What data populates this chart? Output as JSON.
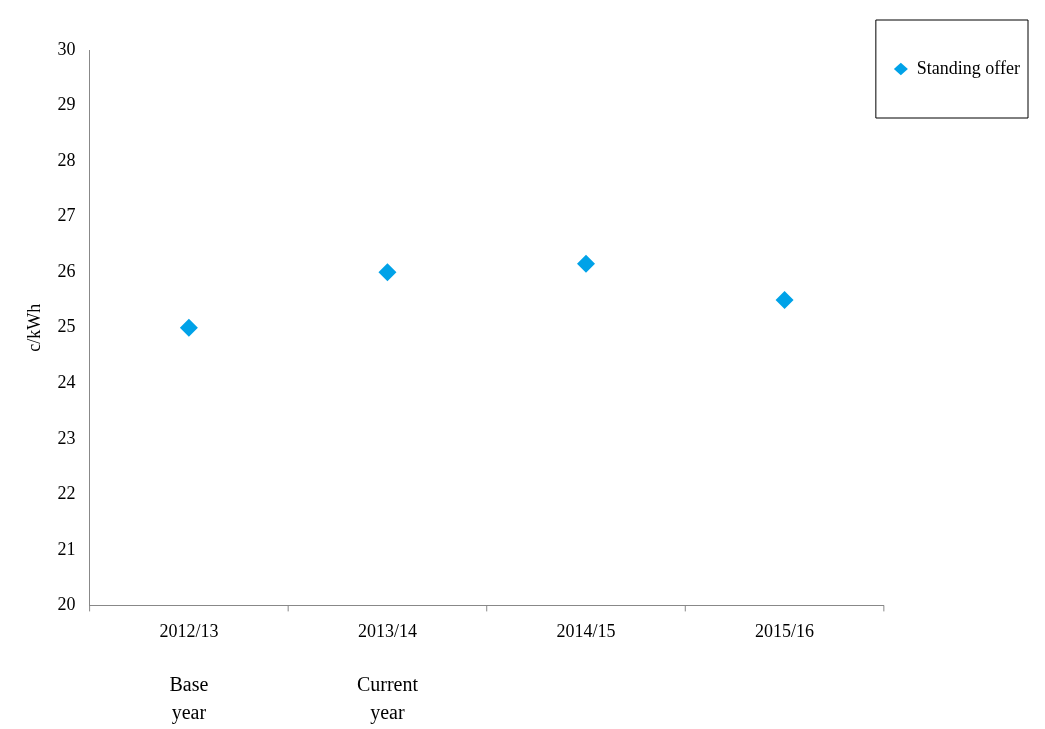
{
  "chart_data": {
    "type": "scatter",
    "ylabel": "c/kWh",
    "categories": [
      "2012/13",
      "2013/14",
      "2014/15",
      "2015/16"
    ],
    "series": [
      {
        "name": "Standing offer",
        "color": "#00a2e8",
        "values": [
          25.0,
          26.0,
          26.15,
          25.5
        ]
      }
    ],
    "ylim": [
      20,
      30
    ],
    "yticks": [
      20,
      21,
      22,
      23,
      24,
      25,
      26,
      27,
      28,
      29,
      30
    ],
    "grid": false,
    "legend": "top right",
    "marker": "diamond",
    "annotations": [
      "Base year",
      "Current year"
    ]
  }
}
